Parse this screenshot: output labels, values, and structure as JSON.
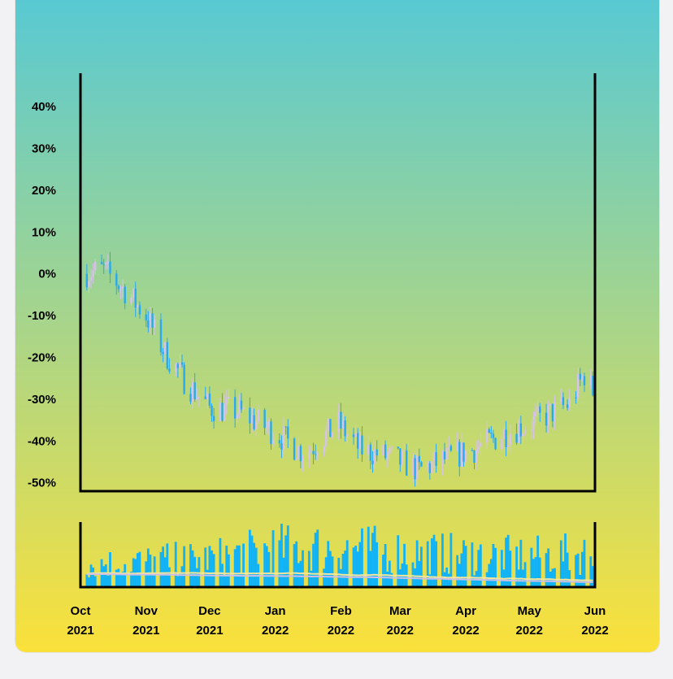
{
  "colors": {
    "gradient_top": "#58c9d3",
    "gradient_mid": "#a8d58a",
    "gradient_bottom": "#fbe13a",
    "axis": "#000000",
    "candle_up": "#d6c3e8",
    "candle_down": "#29a9f0",
    "volume_bar": "#12b3f5",
    "volume_ma_fast": "#f3e59a",
    "volume_ma_slow": "#cfc0e6"
  },
  "chart_data": {
    "type": "candlestick",
    "title": "",
    "xlabel": "",
    "ylabel": "",
    "x_range": [
      "2021-10-01",
      "2022-06-01"
    ],
    "ylim": [
      -52,
      48
    ],
    "y_ticks": [
      {
        "value": 40,
        "label": "40%"
      },
      {
        "value": 30,
        "label": "30%"
      },
      {
        "value": 20,
        "label": "20%"
      },
      {
        "value": 10,
        "label": "10%"
      },
      {
        "value": 0,
        "label": "0%"
      },
      {
        "value": -10,
        "label": "-10%"
      },
      {
        "value": -20,
        "label": "-20%"
      },
      {
        "value": -30,
        "label": "-30%"
      },
      {
        "value": -40,
        "label": "-40%"
      },
      {
        "value": -50,
        "label": "-50%"
      }
    ],
    "x_ticks": [
      {
        "date": "2021-10-01",
        "month": "Oct",
        "year": "2021"
      },
      {
        "date": "2021-11-01",
        "month": "Nov",
        "year": "2021"
      },
      {
        "date": "2021-12-01",
        "month": "Dec",
        "year": "2021"
      },
      {
        "date": "2022-01-01",
        "month": "Jan",
        "year": "2022"
      },
      {
        "date": "2022-02-01",
        "month": "Feb",
        "year": "2022"
      },
      {
        "date": "2022-03-01",
        "month": "Mar",
        "year": "2022"
      },
      {
        "date": "2022-04-01",
        "month": "Apr",
        "year": "2022"
      },
      {
        "date": "2022-05-01",
        "month": "May",
        "year": "2022"
      },
      {
        "date": "2022-06-01",
        "month": "Jun",
        "year": "2022"
      }
    ],
    "close_anchors": [
      {
        "date": "2021-10-01",
        "value": 0
      },
      {
        "date": "2021-10-12",
        "value": 1
      },
      {
        "date": "2021-10-22",
        "value": -4
      },
      {
        "date": "2021-11-01",
        "value": -10
      },
      {
        "date": "2021-11-10",
        "value": -19
      },
      {
        "date": "2021-11-20",
        "value": -26
      },
      {
        "date": "2021-12-01",
        "value": -32
      },
      {
        "date": "2021-12-15",
        "value": -33
      },
      {
        "date": "2022-01-01",
        "value": -38
      },
      {
        "date": "2022-01-15",
        "value": -43
      },
      {
        "date": "2022-01-31",
        "value": -36
      },
      {
        "date": "2022-02-10",
        "value": -42
      },
      {
        "date": "2022-02-25",
        "value": -44
      },
      {
        "date": "2022-03-10",
        "value": -47
      },
      {
        "date": "2022-03-24",
        "value": -44
      },
      {
        "date": "2022-04-05",
        "value": -42
      },
      {
        "date": "2022-04-20",
        "value": -38
      },
      {
        "date": "2022-05-05",
        "value": -35
      },
      {
        "date": "2022-05-20",
        "value": -31
      },
      {
        "date": "2022-05-27",
        "value": -24
      },
      {
        "date": "2022-06-01",
        "value": -29
      }
    ],
    "volume_panel": {
      "series": [
        "volume",
        "volume moving average (fast)",
        "volume moving average (slow)"
      ],
      "relative_level_anchors": [
        {
          "date": "2021-10-01",
          "value": 0.35
        },
        {
          "date": "2021-11-01",
          "value": 0.4
        },
        {
          "date": "2021-12-01",
          "value": 0.45
        },
        {
          "date": "2022-01-01",
          "value": 0.6
        },
        {
          "date": "2022-02-01",
          "value": 0.62
        },
        {
          "date": "2022-03-01",
          "value": 0.55
        },
        {
          "date": "2022-04-01",
          "value": 0.5
        },
        {
          "date": "2022-05-01",
          "value": 0.48
        },
        {
          "date": "2022-06-01",
          "value": 0.52
        }
      ]
    }
  }
}
